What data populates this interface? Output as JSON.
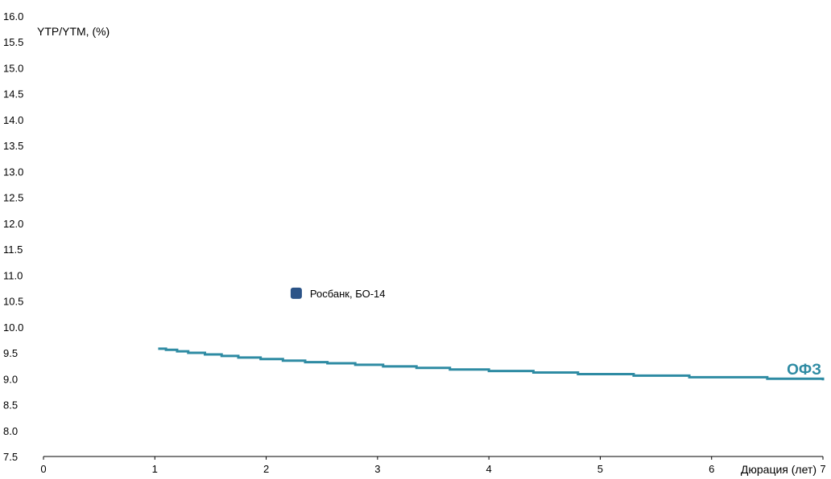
{
  "chart_data": {
    "type": "scatter",
    "ylabel": "YTP/YTM, (%)",
    "xlabel": "Дюрация (лет)",
    "xlim": [
      0,
      7
    ],
    "ylim": [
      7.5,
      16.0
    ],
    "x_ticks": [
      "0",
      "1",
      "2",
      "3",
      "4",
      "5",
      "6",
      "7"
    ],
    "y_ticks": [
      "16.0",
      "15.5",
      "15.0",
      "14.5",
      "14.0",
      "13.5",
      "13.0",
      "12.5",
      "12.0",
      "11.5",
      "11.0",
      "10.5",
      "10.0",
      "9.5",
      "9.0",
      "8.5",
      "8.0",
      "7.5"
    ],
    "grid": false,
    "points": [
      {
        "label": "Росбанк, БО-14",
        "x": 2.27,
        "y": 10.65,
        "color": "#2b5387"
      }
    ],
    "curve": {
      "name": "ОФЗ",
      "color": "#2e8ba3",
      "x": [
        1.03,
        1.1,
        1.2,
        1.3,
        1.45,
        1.6,
        1.75,
        1.95,
        2.15,
        2.35,
        2.55,
        2.8,
        3.05,
        3.35,
        3.65,
        4.0,
        4.4,
        4.8,
        5.3,
        5.8,
        6.5,
        7.0
      ],
      "y": [
        9.58,
        9.56,
        9.53,
        9.5,
        9.47,
        9.44,
        9.41,
        9.38,
        9.35,
        9.32,
        9.3,
        9.27,
        9.24,
        9.21,
        9.18,
        9.15,
        9.12,
        9.09,
        9.06,
        9.03,
        9.0,
        8.97
      ]
    }
  }
}
